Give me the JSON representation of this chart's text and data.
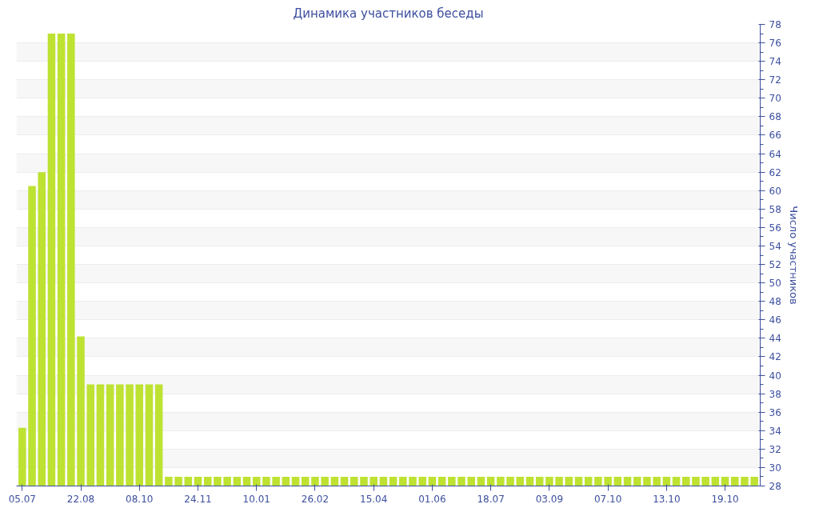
{
  "chart_data": {
    "type": "bar",
    "title": "Динамика участников беседы",
    "ylabel": "Число участников",
    "categories": [
      "05.07",
      null,
      null,
      null,
      null,
      null,
      "22.08",
      null,
      null,
      null,
      null,
      null,
      "08.10",
      null,
      null,
      null,
      null,
      null,
      "24.11",
      null,
      null,
      null,
      null,
      null,
      "10.01",
      null,
      null,
      null,
      null,
      null,
      "26.02",
      null,
      null,
      null,
      null,
      null,
      "15.04",
      null,
      null,
      null,
      null,
      null,
      "01.06",
      null,
      null,
      null,
      null,
      null,
      "18.07",
      null,
      null,
      null,
      null,
      null,
      "03.09",
      null,
      null,
      null,
      null,
      null,
      "07.10",
      null,
      null,
      null,
      null,
      null,
      "13.10",
      null,
      null,
      null,
      null,
      null,
      "19.10",
      null,
      null,
      null
    ],
    "values": [
      34.3,
      60.5,
      62,
      77,
      77,
      77,
      44.2,
      39,
      39,
      39,
      39,
      39,
      39,
      39,
      39,
      29,
      29,
      29,
      29,
      29,
      29,
      29,
      29,
      29,
      29,
      29,
      29,
      29,
      29,
      29,
      29,
      29,
      29,
      29,
      29,
      29,
      29,
      29,
      29,
      29,
      29,
      29,
      29,
      29,
      29,
      29,
      29,
      29,
      29,
      29,
      29,
      29,
      29,
      29,
      29,
      29,
      29,
      29,
      29,
      29,
      29,
      29,
      29,
      29,
      29,
      29,
      29,
      29,
      29,
      29,
      29,
      29,
      29,
      29,
      29,
      29
    ],
    "color": "#bde232",
    "ylim": [
      28,
      78
    ],
    "yticks": [
      28,
      30,
      32,
      34,
      36,
      38,
      40,
      42,
      44,
      46,
      48,
      50,
      52,
      54,
      56,
      58,
      60,
      62,
      64,
      66,
      68,
      70,
      72,
      74,
      76,
      78
    ],
    "grid": "y"
  }
}
